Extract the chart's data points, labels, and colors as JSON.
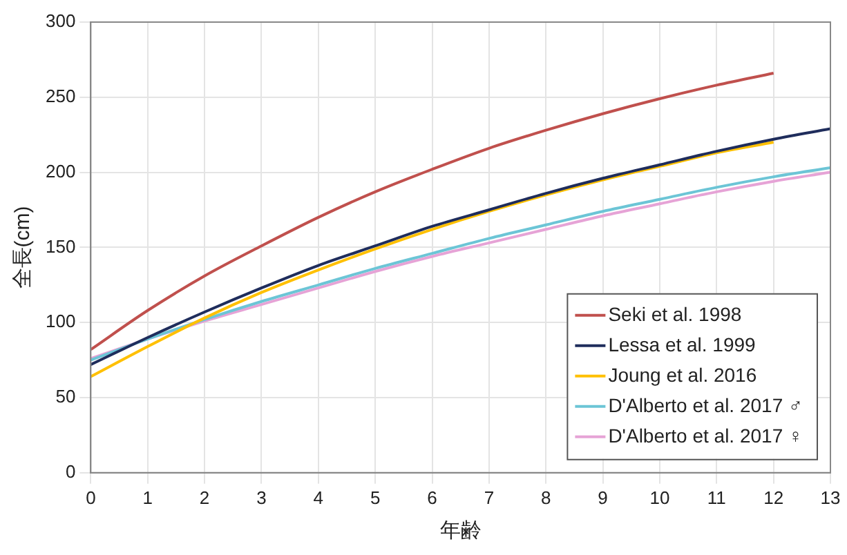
{
  "chart_data": {
    "type": "line",
    "xlabel": "年齢",
    "ylabel": "全長(cm)",
    "x": [
      0,
      1,
      2,
      3,
      4,
      5,
      6,
      7,
      8,
      9,
      10,
      11,
      12,
      13
    ],
    "series": [
      {
        "name": "Seki et al. 1998",
        "color": "#c0504d",
        "values": [
          82,
          108,
          131,
          151,
          170,
          187,
          202,
          216,
          228,
          239,
          249,
          258,
          266,
          null
        ]
      },
      {
        "name": "Lessa et al. 1999",
        "color": "#1f2d5c",
        "values": [
          72,
          90,
          107,
          123,
          138,
          151,
          164,
          175,
          186,
          196,
          205,
          214,
          222,
          229
        ]
      },
      {
        "name": "Joung et al. 2016",
        "color": "#ffc000",
        "values": [
          64,
          84,
          103,
          120,
          135,
          149,
          162,
          174,
          185,
          195,
          204,
          213,
          220,
          null
        ]
      },
      {
        "name": "D'Alberto et al. 2017 ♂",
        "color": "#6cc5d6",
        "values": [
          75,
          89,
          102,
          114,
          125,
          136,
          146,
          156,
          165,
          174,
          182,
          190,
          197,
          203
        ]
      },
      {
        "name": "D'Alberto et al. 2017 ♀",
        "color": "#e6a3d6",
        "values": [
          76,
          89,
          101,
          112,
          123,
          134,
          144,
          153,
          162,
          171,
          179,
          187,
          194,
          200
        ]
      }
    ],
    "xlim": [
      0,
      13
    ],
    "xticks": [
      0,
      1,
      2,
      3,
      4,
      5,
      6,
      7,
      8,
      9,
      10,
      11,
      12,
      13
    ],
    "ylim": [
      0,
      300
    ],
    "yticks": [
      0,
      50,
      100,
      150,
      200,
      250,
      300
    ],
    "grid": true,
    "legend": "bottom right",
    "marker": "none",
    "line_style": "solid"
  }
}
